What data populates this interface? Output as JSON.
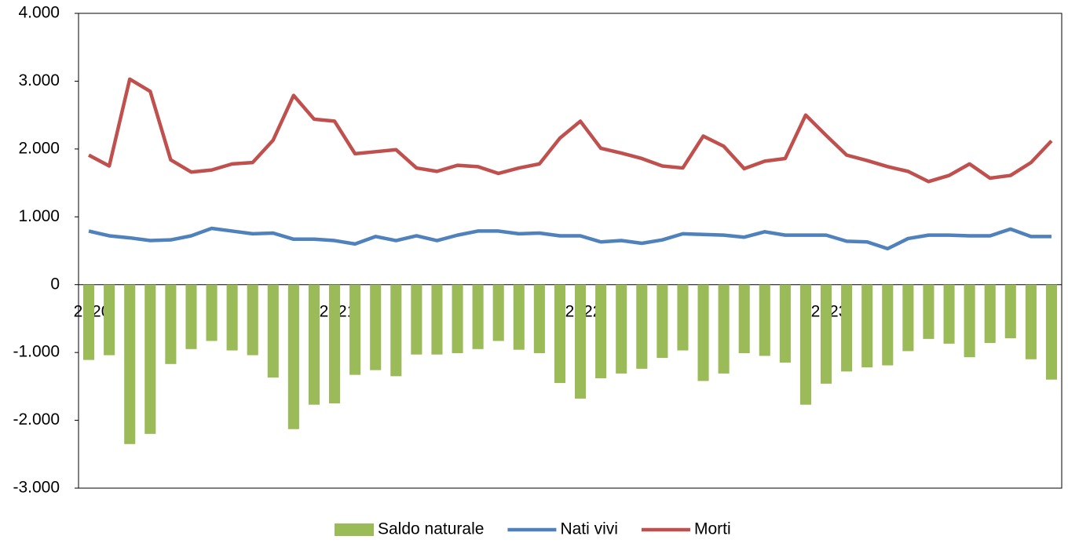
{
  "chart_data": {
    "type": "bar",
    "categories": [
      "2020",
      null,
      null,
      null,
      null,
      null,
      null,
      null,
      null,
      null,
      null,
      null,
      "2021",
      null,
      null,
      null,
      null,
      null,
      null,
      null,
      null,
      null,
      null,
      null,
      "2022",
      null,
      null,
      null,
      null,
      null,
      null,
      null,
      null,
      null,
      null,
      null,
      "2023",
      null,
      null,
      null,
      null,
      null,
      null,
      null,
      null,
      null,
      null,
      null
    ],
    "series": [
      {
        "name": "Saldo naturale",
        "type": "bar",
        "color": "#9bbb59",
        "values": [
          -1110,
          -1040,
          -2350,
          -2200,
          -1170,
          -950,
          -830,
          -970,
          -1040,
          -1370,
          -2130,
          -1770,
          -1750,
          -1330,
          -1260,
          -1350,
          -1030,
          -1030,
          -1010,
          -950,
          -830,
          -960,
          -1010,
          -1450,
          -1680,
          -1380,
          -1310,
          -1240,
          -1080,
          -970,
          -1420,
          -1310,
          -1010,
          -1050,
          -1150,
          -1770,
          -1460,
          -1280,
          -1220,
          -1190,
          -980,
          -800,
          -870,
          -1070,
          -860,
          -790,
          -1100,
          -1400
        ]
      },
      {
        "name": "Nati vivi",
        "type": "line",
        "color": "#4f81bd",
        "values": [
          790,
          720,
          690,
          650,
          660,
          720,
          830,
          790,
          750,
          760,
          670,
          670,
          650,
          600,
          710,
          650,
          720,
          650,
          730,
          790,
          790,
          750,
          760,
          720,
          720,
          630,
          650,
          610,
          660,
          750,
          740,
          730,
          700,
          780,
          730,
          730,
          730,
          640,
          630,
          530,
          680,
          730,
          730,
          720,
          720,
          820,
          710,
          710
        ]
      },
      {
        "name": "Morti",
        "type": "line",
        "color": "#c0504d",
        "values": [
          1910,
          1750,
          3030,
          2850,
          1840,
          1660,
          1690,
          1780,
          1800,
          2130,
          2790,
          2440,
          2410,
          1930,
          1960,
          1990,
          1720,
          1670,
          1760,
          1740,
          1640,
          1720,
          1780,
          2160,
          2410,
          2010,
          1940,
          1860,
          1750,
          1720,
          2190,
          2040,
          1710,
          1820,
          1860,
          2500,
          2200,
          1910,
          1830,
          1740,
          1670,
          1520,
          1610,
          1780,
          1570,
          1610,
          1800,
          2120
        ]
      }
    ],
    "ylim": [
      -3000,
      4000
    ],
    "yticks": [
      {
        "value": -3000,
        "label": "-3.000"
      },
      {
        "value": -2000,
        "label": "-2.000"
      },
      {
        "value": -1000,
        "label": "-1.000"
      },
      0,
      {
        "value": 1000,
        "label": "1.000"
      },
      {
        "value": 2000,
        "label": "2.000"
      },
      {
        "value": 3000,
        "label": "3.000"
      },
      {
        "value": 4000,
        "label": "4.000"
      }
    ],
    "legend": "bottom"
  }
}
